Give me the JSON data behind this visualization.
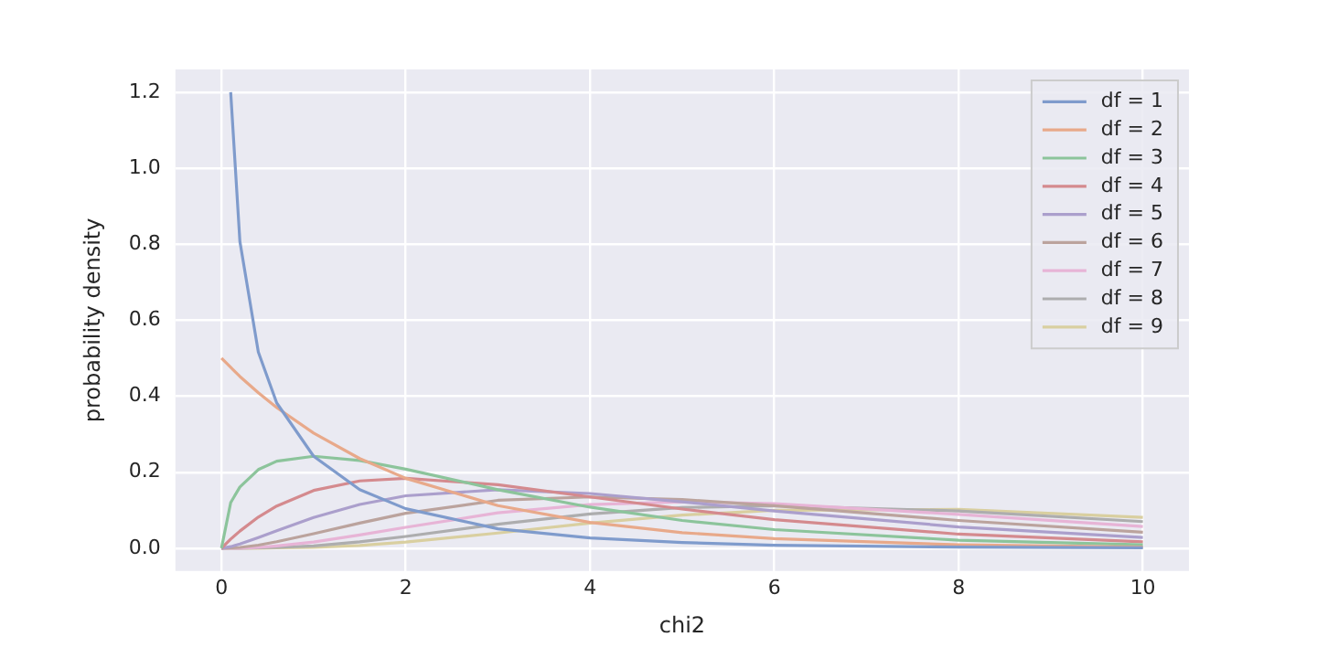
{
  "chart_data": {
    "type": "line",
    "xlabel": "chi2",
    "ylabel": "probability density",
    "x": [
      0,
      0.1,
      0.2,
      0.4,
      0.6,
      1,
      1.5,
      2,
      3,
      4,
      5,
      6,
      8,
      10
    ],
    "series": [
      {
        "name": "df = 1",
        "color": "#7f9bcc",
        "values": [
          null,
          1.2,
          0.807,
          0.516,
          0.382,
          0.242,
          0.154,
          0.104,
          0.051,
          0.027,
          0.015,
          0.008,
          0.003,
          0.001
        ]
      },
      {
        "name": "df = 2",
        "color": "#e8a98a",
        "values": [
          0.5,
          0.476,
          0.452,
          0.409,
          0.37,
          0.303,
          0.236,
          0.184,
          0.112,
          0.068,
          0.041,
          0.025,
          0.009,
          0.003
        ]
      },
      {
        "name": "df = 3",
        "color": "#8cc49b",
        "values": [
          0,
          0.12,
          0.161,
          0.207,
          0.229,
          0.242,
          0.231,
          0.208,
          0.154,
          0.108,
          0.073,
          0.049,
          0.021,
          0.009
        ]
      },
      {
        "name": "df = 4",
        "color": "#d48a8e",
        "values": [
          0,
          0.024,
          0.045,
          0.082,
          0.111,
          0.152,
          0.177,
          0.184,
          0.167,
          0.135,
          0.103,
          0.075,
          0.037,
          0.017
        ]
      },
      {
        "name": "df = 5",
        "color": "#ab9fcc",
        "values": [
          0,
          0.004,
          0.011,
          0.028,
          0.046,
          0.081,
          0.115,
          0.138,
          0.154,
          0.144,
          0.122,
          0.098,
          0.056,
          0.028
        ]
      },
      {
        "name": "df = 6",
        "color": "#bba39d",
        "values": [
          0,
          0.001,
          0.002,
          0.008,
          0.017,
          0.038,
          0.066,
          0.092,
          0.126,
          0.135,
          0.128,
          0.112,
          0.073,
          0.042
        ]
      },
      {
        "name": "df = 7",
        "color": "#e7b4d6",
        "values": [
          0,
          0,
          0,
          0.002,
          0.006,
          0.016,
          0.035,
          0.055,
          0.093,
          0.115,
          0.122,
          0.117,
          0.089,
          0.057
        ]
      },
      {
        "name": "df = 8",
        "color": "#adadae",
        "values": [
          0,
          0,
          0,
          0.001,
          0.002,
          0.006,
          0.017,
          0.031,
          0.063,
          0.09,
          0.107,
          0.112,
          0.098,
          0.07
        ]
      },
      {
        "name": "df = 9",
        "color": "#d9cfa0",
        "values": [
          0,
          0,
          0,
          0,
          0.001,
          0.002,
          0.007,
          0.016,
          0.04,
          0.066,
          0.087,
          0.1,
          0.102,
          0.081
        ]
      }
    ],
    "xlim": [
      -0.5,
      10.5
    ],
    "ylim": [
      -0.06,
      1.26
    ],
    "xticks": [
      0,
      2,
      4,
      6,
      8,
      10
    ],
    "yticks": [
      {
        "value": 0,
        "label": "0.0"
      },
      {
        "value": 0.2,
        "label": "0.2"
      },
      {
        "value": 0.4,
        "label": "0.4"
      },
      {
        "value": 0.6,
        "label": "0.6"
      },
      {
        "value": 0.8,
        "label": "0.8"
      },
      {
        "value": 1,
        "label": "1.0"
      },
      {
        "value": 1.2,
        "label": "1.2"
      }
    ],
    "grid": true,
    "legend": "top right"
  }
}
